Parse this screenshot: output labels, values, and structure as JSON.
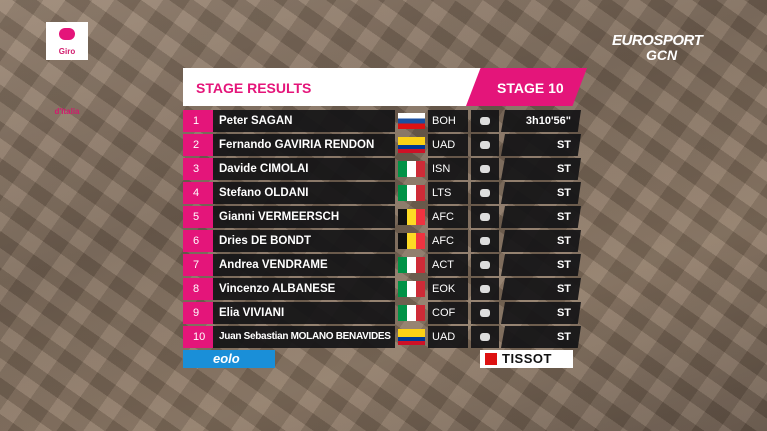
{
  "logos": {
    "giro": "Giro d'Italia",
    "broadcaster": "EUROSPORT",
    "channel": "GCN",
    "sponsor": "eolo",
    "timing": "TISSOT"
  },
  "header": {
    "title": "STAGE RESULTS",
    "stage": "STAGE 10"
  },
  "rows": [
    {
      "rank": 1,
      "rider": "Peter SAGAN",
      "team": "BOH",
      "time": "3h10'56\""
    },
    {
      "rank": 2,
      "rider": "Fernando GAVIRIA RENDON",
      "team": "UAD",
      "time": "ST"
    },
    {
      "rank": 3,
      "rider": "Davide CIMOLAI",
      "team": "ISN",
      "time": "ST"
    },
    {
      "rank": 4,
      "rider": "Stefano OLDANI",
      "team": "LTS",
      "time": "ST"
    },
    {
      "rank": 5,
      "rider": "Gianni VERMEERSCH",
      "team": "AFC",
      "time": "ST"
    },
    {
      "rank": 6,
      "rider": "Dries DE BONDT",
      "team": "AFC",
      "time": "ST"
    },
    {
      "rank": 7,
      "rider": "Andrea VENDRAME",
      "team": "ACT",
      "time": "ST"
    },
    {
      "rank": 8,
      "rider": "Vincenzo ALBANESE",
      "team": "EOK",
      "time": "ST"
    },
    {
      "rank": 9,
      "rider": "Elia VIVIANI",
      "team": "COF",
      "time": "ST"
    },
    {
      "rank": 10,
      "rider": "Juan Sebastian MOLANO BENAVIDES",
      "team": "UAD",
      "time": "ST"
    }
  ]
}
